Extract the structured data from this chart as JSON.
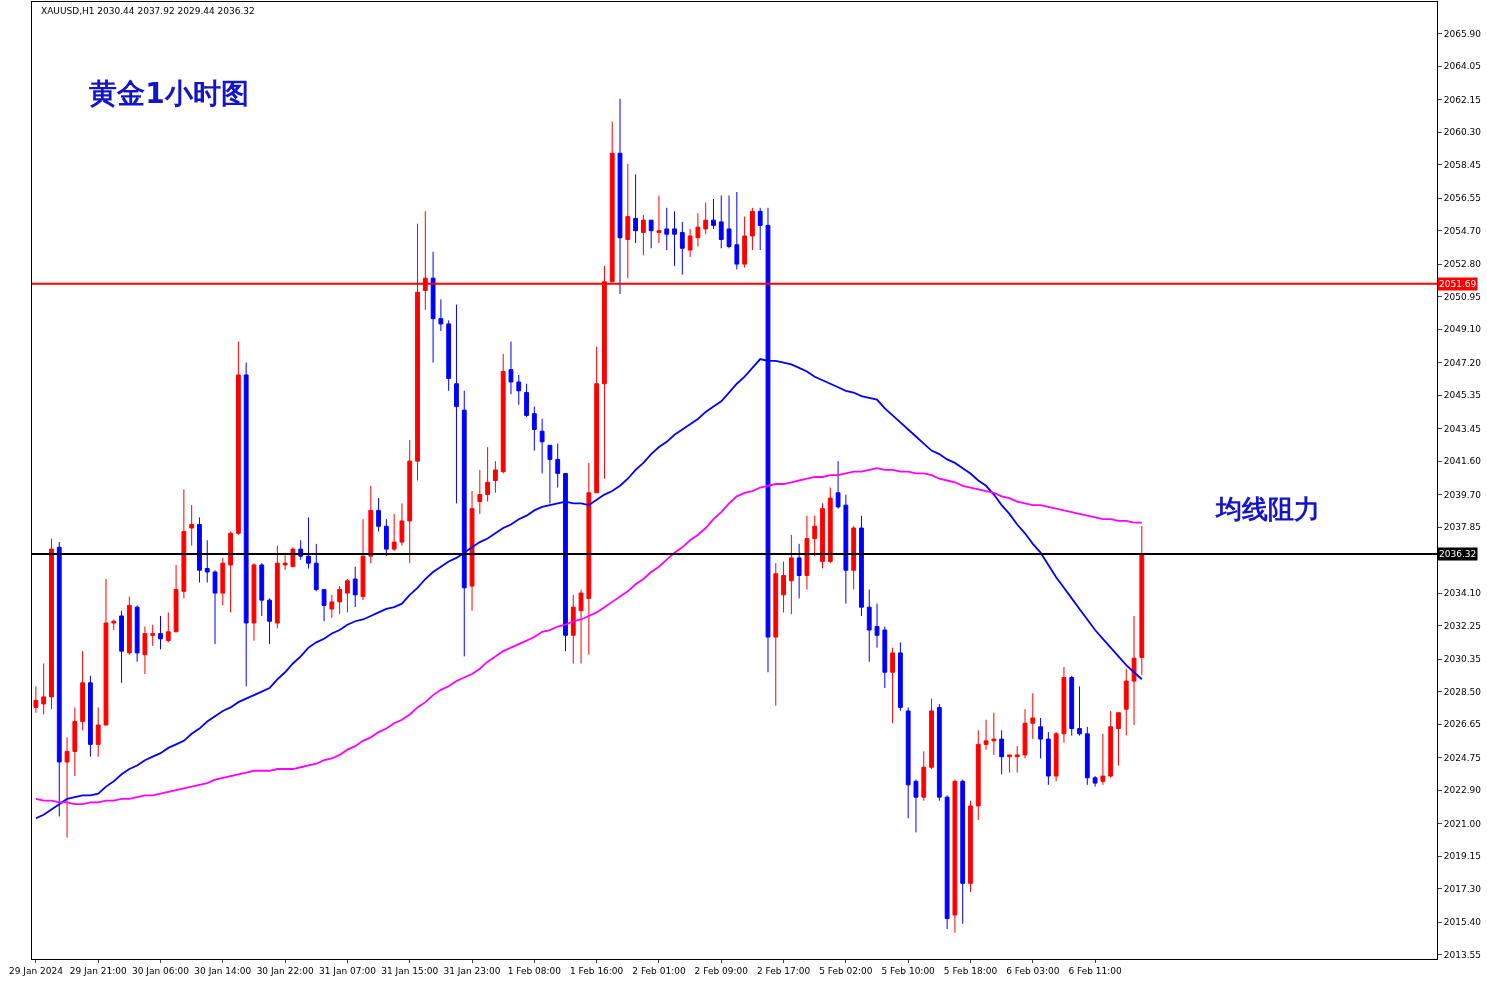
{
  "chart_data": {
    "type": "candlestick",
    "title": "黄金1小时图",
    "annotations": [
      "XAUUSD,H1 2030.44 2037.92 2029.44 2036.32",
      "均线阻力"
    ],
    "categories": [
      "29 Jan 2024",
      null,
      null,
      null,
      null,
      null,
      null,
      null,
      "29 Jan 21:00",
      null,
      null,
      null,
      null,
      null,
      null,
      null,
      "30 Jan 06:00",
      null,
      null,
      null,
      null,
      null,
      null,
      null,
      "30 Jan 14:00",
      null,
      null,
      null,
      null,
      null,
      null,
      null,
      "30 Jan 22:00",
      null,
      null,
      null,
      null,
      null,
      null,
      null,
      "31 Jan 07:00",
      null,
      null,
      null,
      null,
      null,
      null,
      null,
      "31 Jan 15:00",
      null,
      null,
      null,
      null,
      null,
      null,
      null,
      "31 Jan 23:00",
      null,
      null,
      null,
      null,
      null,
      null,
      null,
      "1 Feb 08:00",
      null,
      null,
      null,
      null,
      null,
      null,
      null,
      "1 Feb 16:00",
      null,
      null,
      null,
      null,
      null,
      null,
      null,
      "2 Feb 01:00",
      null,
      null,
      null,
      null,
      null,
      null,
      null,
      "2 Feb 09:00",
      null,
      null,
      null,
      null,
      null,
      null,
      null,
      "2 Feb 17:00",
      null,
      null,
      null,
      null,
      null,
      null,
      null,
      "5 Feb 02:00",
      null,
      null,
      null,
      null,
      null,
      null,
      null,
      "5 Feb 10:00",
      null,
      null,
      null,
      null,
      null,
      null,
      null,
      "5 Feb 18:00",
      null,
      null,
      null,
      null,
      null,
      null,
      null,
      "6 Feb 03:00",
      null,
      null,
      null,
      null,
      null,
      null,
      null,
      "6 Feb 11:00",
      null,
      null,
      null,
      null,
      null,
      null
    ],
    "ohlc": [
      [
        2027.6,
        2028.8,
        2027.3,
        2028.0
      ],
      [
        2027.8,
        2030.1,
        2027.2,
        2028.2
      ],
      [
        2028.2,
        2037.2,
        2027.5,
        2036.6
      ],
      [
        2036.7,
        2037.0,
        2021.4,
        2024.5
      ],
      [
        2024.5,
        2025.9,
        2020.2,
        2025.1
      ],
      [
        2025.1,
        2027.6,
        2023.7,
        2026.8
      ],
      [
        2026.8,
        2030.8,
        2026.3,
        2029.0
      ],
      [
        2029.0,
        2029.4,
        2024.8,
        2025.5
      ],
      [
        2025.5,
        2027.6,
        2024.8,
        2026.6
      ],
      [
        2026.6,
        2034.9,
        2026.6,
        2032.4
      ],
      [
        2032.4,
        2032.6,
        2032.0,
        2032.5
      ],
      [
        2032.8,
        2033.1,
        2029.0,
        2030.8
      ],
      [
        2030.7,
        2033.9,
        2030.6,
        2033.4
      ],
      [
        2033.3,
        2033.4,
        2030.2,
        2030.7
      ],
      [
        2030.6,
        2032.2,
        2029.5,
        2031.8
      ],
      [
        2031.7,
        2032.3,
        2031.1,
        2031.8
      ],
      [
        2031.8,
        2032.8,
        2030.9,
        2031.5
      ],
      [
        2031.4,
        2033.0,
        2031.3,
        2031.9
      ],
      [
        2031.9,
        2035.7,
        2031.9,
        2034.3
      ],
      [
        2034.2,
        2040.0,
        2033.8,
        2037.6
      ],
      [
        2037.8,
        2039.1,
        2036.8,
        2038.0
      ],
      [
        2038.0,
        2038.4,
        2034.7,
        2035.4
      ],
      [
        2035.5,
        2037.1,
        2034.7,
        2035.3
      ],
      [
        2035.3,
        2035.4,
        2031.2,
        2034.1
      ],
      [
        2034.1,
        2036.1,
        2033.4,
        2035.8
      ],
      [
        2035.7,
        2037.6,
        2033.0,
        2037.5
      ],
      [
        2037.5,
        2048.4,
        2037.4,
        2046.5
      ],
      [
        2046.5,
        2047.2,
        2028.8,
        2032.4
      ],
      [
        2032.4,
        2035.8,
        2031.4,
        2035.7
      ],
      [
        2035.7,
        2035.8,
        2032.8,
        2033.7
      ],
      [
        2033.7,
        2033.8,
        2031.2,
        2032.5
      ],
      [
        2032.4,
        2036.8,
        2032.1,
        2035.8
      ],
      [
        2035.7,
        2036.4,
        2035.4,
        2035.8
      ],
      [
        2035.6,
        2036.7,
        2035.6,
        2036.6
      ],
      [
        2036.6,
        2037.1,
        2036.0,
        2036.2
      ],
      [
        2036.2,
        2038.4,
        2035.5,
        2035.8
      ],
      [
        2035.8,
        2036.9,
        2034.2,
        2034.3
      ],
      [
        2034.3,
        2034.3,
        2032.5,
        2033.4
      ],
      [
        2033.2,
        2034.0,
        2032.7,
        2033.6
      ],
      [
        2033.6,
        2034.5,
        2032.9,
        2034.3
      ],
      [
        2034.1,
        2034.9,
        2033.0,
        2034.8
      ],
      [
        2034.9,
        2035.6,
        2033.3,
        2034.0
      ],
      [
        2033.9,
        2038.3,
        2033.7,
        2036.2
      ],
      [
        2036.2,
        2040.2,
        2035.8,
        2038.8
      ],
      [
        2038.8,
        2039.5,
        2037.6,
        2037.9
      ],
      [
        2037.9,
        2038.3,
        2036.2,
        2036.6
      ],
      [
        2036.6,
        2038.6,
        2036.5,
        2037.0
      ],
      [
        2037.0,
        2039.2,
        2036.8,
        2038.2
      ],
      [
        2038.2,
        2042.8,
        2035.8,
        2041.6
      ],
      [
        2041.6,
        2055.1,
        2040.5,
        2051.2
      ],
      [
        2051.3,
        2055.8,
        2050.2,
        2052.0
      ],
      [
        2052.0,
        2053.5,
        2047.2,
        2049.7
      ],
      [
        2049.7,
        2050.8,
        2049.0,
        2049.4
      ],
      [
        2049.4,
        2049.6,
        2045.6,
        2046.3
      ],
      [
        2046.0,
        2050.5,
        2039.2,
        2044.7
      ],
      [
        2044.5,
        2045.6,
        2030.5,
        2034.4
      ],
      [
        2034.5,
        2039.9,
        2033.1,
        2038.9
      ],
      [
        2039.3,
        2041.1,
        2038.6,
        2039.7
      ],
      [
        2039.7,
        2042.4,
        2039.3,
        2040.4
      ],
      [
        2040.5,
        2041.6,
        2039.8,
        2041.1
      ],
      [
        2041.0,
        2047.7,
        2040.9,
        2046.7
      ],
      [
        2046.8,
        2048.4,
        2045.4,
        2046.1
      ],
      [
        2046.1,
        2046.5,
        2044.8,
        2045.6
      ],
      [
        2045.5,
        2046.0,
        2044.1,
        2044.2
      ],
      [
        2044.3,
        2044.7,
        2042.2,
        2043.4
      ],
      [
        2043.3,
        2044.0,
        2040.9,
        2042.7
      ],
      [
        2042.5,
        2042.5,
        2039.2,
        2041.7
      ],
      [
        2041.7,
        2042.6,
        2040.1,
        2040.9
      ],
      [
        2040.9,
        2040.9,
        2030.8,
        2031.7
      ],
      [
        2031.7,
        2034.0,
        2030.1,
        2033.3
      ],
      [
        2033.1,
        2034.3,
        2030.1,
        2034.1
      ],
      [
        2033.8,
        2041.5,
        2030.6,
        2039.8
      ],
      [
        2039.8,
        2048.1,
        2039.8,
        2046.0
      ],
      [
        2046.0,
        2052.7,
        2040.6,
        2051.8
      ],
      [
        2051.8,
        2060.9,
        2051.8,
        2059.1
      ],
      [
        2059.1,
        2062.2,
        2051.1,
        2054.3
      ],
      [
        2054.2,
        2058.5,
        2052.0,
        2055.5
      ],
      [
        2055.4,
        2057.9,
        2054.0,
        2054.7
      ],
      [
        2054.6,
        2055.6,
        2053.3,
        2055.3
      ],
      [
        2055.3,
        2055.3,
        2053.7,
        2054.7
      ],
      [
        2054.6,
        2056.7,
        2054.0,
        2054.7
      ],
      [
        2054.8,
        2056.0,
        2053.6,
        2054.5
      ],
      [
        2054.8,
        2055.8,
        2052.7,
        2054.5
      ],
      [
        2054.6,
        2055.2,
        2052.2,
        2053.7
      ],
      [
        2053.6,
        2054.8,
        2053.2,
        2054.4
      ],
      [
        2054.3,
        2055.7,
        2053.8,
        2054.9
      ],
      [
        2054.8,
        2056.3,
        2054.5,
        2055.3
      ],
      [
        2055.3,
        2056.5,
        2054.8,
        2055.0
      ],
      [
        2055.2,
        2056.7,
        2053.7,
        2054.2
      ],
      [
        2054.8,
        2056.7,
        2053.7,
        2053.8
      ],
      [
        2053.9,
        2056.9,
        2052.5,
        2052.8
      ],
      [
        2052.8,
        2055.5,
        2052.6,
        2054.4
      ],
      [
        2054.4,
        2056.0,
        2053.6,
        2055.8
      ],
      [
        2055.8,
        2056.0,
        2053.6,
        2055.0
      ],
      [
        2055.0,
        2056.0,
        2029.6,
        2031.6
      ],
      [
        2031.6,
        2035.8,
        2027.7,
        2035.2
      ],
      [
        2034.0,
        2035.9,
        2033.0,
        2035.1
      ],
      [
        2034.8,
        2037.4,
        2032.9,
        2036.1
      ],
      [
        2036.1,
        2036.9,
        2033.8,
        2035.1
      ],
      [
        2035.1,
        2038.5,
        2034.3,
        2037.2
      ],
      [
        2037.2,
        2038.5,
        2036.2,
        2037.9
      ],
      [
        2035.9,
        2039.2,
        2035.5,
        2038.9
      ],
      [
        2035.9,
        2040.1,
        2035.8,
        2039.5
      ],
      [
        2039.8,
        2041.6,
        2038.9,
        2039.0
      ],
      [
        2039.1,
        2039.7,
        2033.5,
        2035.4
      ],
      [
        2035.4,
        2037.9,
        2034.3,
        2037.8
      ],
      [
        2037.8,
        2038.5,
        2032.8,
        2033.3
      ],
      [
        2033.3,
        2034.3,
        2030.2,
        2032.0
      ],
      [
        2032.2,
        2033.5,
        2031.0,
        2031.7
      ],
      [
        2032.0,
        2032.2,
        2028.7,
        2029.6
      ],
      [
        2029.6,
        2031.0,
        2026.7,
        2030.7
      ],
      [
        2030.7,
        2031.3,
        2027.4,
        2027.6
      ],
      [
        2027.4,
        2027.6,
        2021.3,
        2023.2
      ],
      [
        2023.4,
        2023.5,
        2020.5,
        2022.5
      ],
      [
        2022.5,
        2025.1,
        2022.3,
        2024.2
      ],
      [
        2024.2,
        2028.1,
        2024.1,
        2027.4
      ],
      [
        2027.6,
        2027.8,
        2022.3,
        2022.5
      ],
      [
        2022.5,
        2022.6,
        2015.0,
        2015.6
      ],
      [
        2015.8,
        2023.5,
        2014.8,
        2023.4
      ],
      [
        2023.4,
        2023.5,
        2015.3,
        2017.6
      ],
      [
        2017.6,
        2022.3,
        2017.1,
        2022.0
      ],
      [
        2022.0,
        2026.3,
        2021.2,
        2025.5
      ],
      [
        2025.5,
        2026.9,
        2025.2,
        2025.7
      ],
      [
        2025.7,
        2027.3,
        2024.9,
        2025.8
      ],
      [
        2025.8,
        2026.3,
        2023.8,
        2024.8
      ],
      [
        2024.8,
        2024.9,
        2023.9,
        2024.9
      ],
      [
        2024.8,
        2025.4,
        2023.9,
        2024.9
      ],
      [
        2024.9,
        2027.5,
        2024.7,
        2026.7
      ],
      [
        2026.7,
        2028.4,
        2025.8,
        2027.0
      ],
      [
        2026.5,
        2027.0,
        2024.7,
        2025.8
      ],
      [
        2025.8,
        2026.2,
        2023.2,
        2023.7
      ],
      [
        2023.7,
        2026.2,
        2023.4,
        2026.1
      ],
      [
        2026.1,
        2029.9,
        2025.6,
        2029.3
      ],
      [
        2029.3,
        2029.4,
        2026.0,
        2026.4
      ],
      [
        2026.4,
        2028.8,
        2026.0,
        2026.1
      ],
      [
        2026.1,
        2026.5,
        2023.2,
        2023.6
      ],
      [
        2023.6,
        2023.7,
        2023.1,
        2023.3
      ],
      [
        2023.4,
        2026.1,
        2023.2,
        2023.7
      ],
      [
        2023.7,
        2027.4,
        2023.6,
        2026.5
      ],
      [
        2026.4,
        2027.3,
        2024.3,
        2027.3
      ],
      [
        2027.5,
        2029.8,
        2026.0,
        2029.1
      ],
      [
        2029.1,
        2032.8,
        2026.6,
        2030.4
      ],
      [
        2030.44,
        2037.92,
        2029.44,
        2036.32
      ]
    ],
    "colors": [
      "#ff0000",
      "#ff0000",
      "#ff0000",
      "#0000ff",
      "#ff0000",
      "#ff0000",
      "#ff0000",
      "#0000ff",
      "#ff0000",
      "#ff0000",
      "#ff0000",
      "#0000ff",
      "#ff0000",
      "#0000ff",
      "#ff0000",
      "#ff0000",
      "#0000ff",
      "#ff0000",
      "#ff0000",
      "#ff0000",
      "#ff0000",
      "#0000ff",
      "#0000ff",
      "#0000ff",
      "#ff0000",
      "#ff0000",
      "#ff0000",
      "#0000ff",
      "#ff0000",
      "#0000ff",
      "#0000ff",
      "#ff0000",
      "#ff0000",
      "#ff0000",
      "#0000ff",
      "#0000ff",
      "#0000ff",
      "#0000ff",
      "#ff0000",
      "#ff0000",
      "#ff0000",
      "#0000ff",
      "#ff0000",
      "#ff0000",
      "#0000ff",
      "#0000ff",
      "#ff0000",
      "#ff0000",
      "#ff0000",
      "#ff0000",
      "#ff0000",
      "#0000ff",
      "#0000ff",
      "#0000ff",
      "#0000ff",
      "#0000ff",
      "#ff0000",
      "#ff0000",
      "#ff0000",
      "#ff0000",
      "#ff0000",
      "#0000ff",
      "#0000ff",
      "#0000ff",
      "#0000ff",
      "#0000ff",
      "#0000ff",
      "#0000ff",
      "#0000ff",
      "#ff0000",
      "#ff0000",
      "#ff0000",
      "#ff0000",
      "#ff0000",
      "#ff0000",
      "#0000ff",
      "#ff0000",
      "#0000ff",
      "#ff0000",
      "#0000ff",
      "#ff0000",
      "#0000ff",
      "#0000ff",
      "#0000ff",
      "#ff0000",
      "#ff0000",
      "#ff0000",
      "#0000ff",
      "#0000ff",
      "#0000ff",
      "#0000ff",
      "#ff0000",
      "#ff0000",
      "#0000ff",
      "#0000ff",
      "#ff0000",
      "#ff0000",
      "#ff0000",
      "#0000ff",
      "#ff0000",
      "#ff0000",
      "#ff0000",
      "#ff0000",
      "#0000ff",
      "#0000ff",
      "#ff0000",
      "#0000ff",
      "#0000ff",
      "#0000ff",
      "#0000ff",
      "#ff0000",
      "#0000ff",
      "#0000ff",
      "#0000ff",
      "#ff0000",
      "#ff0000",
      "#0000ff",
      "#0000ff",
      "#ff0000",
      "#0000ff",
      "#ff0000",
      "#ff0000",
      "#ff0000",
      "#ff0000",
      "#0000ff",
      "#ff0000",
      "#ff0000",
      "#ff0000",
      "#ff0000",
      "#0000ff",
      "#0000ff",
      "#ff0000",
      "#ff0000",
      "#0000ff",
      "#0000ff",
      "#0000ff",
      "#0000ff",
      "#ff0000",
      "#ff0000",
      "#ff0000",
      "#ff0000",
      "#ff0000",
      "#ff0000"
    ],
    "series": [
      {
        "type": "line",
        "color": "#0000ff",
        "values": [
          2021.3,
          2021.5,
          2021.8,
          2022.1,
          2022.4,
          2022.5,
          2022.6,
          2022.6,
          2022.7,
          2023.1,
          2023.4,
          2023.8,
          2024.1,
          2024.3,
          2024.6,
          2024.8,
          2025.0,
          2025.3,
          2025.5,
          2025.7,
          2026.1,
          2026.4,
          2026.8,
          2027.1,
          2027.4,
          2027.6,
          2027.9,
          2028.1,
          2028.3,
          2028.5,
          2028.7,
          2029.2,
          2029.6,
          2030.1,
          2030.5,
          2031.0,
          2031.3,
          2031.5,
          2031.8,
          2032.0,
          2032.3,
          2032.5,
          2032.6,
          2032.8,
          2033.0,
          2033.2,
          2033.3,
          2033.5,
          2034.0,
          2034.4,
          2034.9,
          2035.3,
          2035.6,
          2035.9,
          2036.1,
          2036.4,
          2036.7,
          2037.0,
          2037.2,
          2037.5,
          2037.8,
          2038.0,
          2038.3,
          2038.5,
          2038.8,
          2039.0,
          2039.1,
          2039.2,
          2039.3,
          2039.2,
          2039.2,
          2039.1,
          2039.4,
          2039.7,
          2039.9,
          2040.2,
          2040.6,
          2041.1,
          2041.5,
          2042.0,
          2042.4,
          2042.7,
          2043.1,
          2043.4,
          2043.7,
          2044.0,
          2044.4,
          2044.7,
          2045.0,
          2045.5,
          2046.0,
          2046.4,
          2046.9,
          2047.4,
          2047.3,
          2047.3,
          2047.2,
          2047.1,
          2046.9,
          2046.7,
          2046.4,
          2046.2,
          2046.0,
          2045.8,
          2045.6,
          2045.5,
          2045.3,
          2045.2,
          2045.1,
          2044.6,
          2044.2,
          2043.8,
          2043.4,
          2043.0,
          2042.6,
          2042.2,
          2042.0,
          2041.7,
          2041.5,
          2041.2,
          2040.9,
          2040.5,
          2040.2,
          2039.7,
          2039.1,
          2038.6,
          2038.0,
          2037.5,
          2036.9,
          2036.4,
          2035.7,
          2035.0,
          2034.4,
          2033.8,
          2033.2,
          2032.6,
          2032.0,
          2031.5,
          2031.0,
          2030.5,
          2030.0,
          2029.6,
          2029.2
        ]
      },
      {
        "type": "line",
        "color": "#ff00ff",
        "values": [
          2022.4,
          2022.3,
          2022.3,
          2022.2,
          2022.2,
          2022.1,
          2022.1,
          2022.2,
          2022.2,
          2022.3,
          2022.3,
          2022.4,
          2022.4,
          2022.5,
          2022.6,
          2022.6,
          2022.7,
          2022.8,
          2022.9,
          2023.0,
          2023.1,
          2023.2,
          2023.3,
          2023.5,
          2023.6,
          2023.7,
          2023.8,
          2023.9,
          2024.0,
          2024.0,
          2024.0,
          2024.1,
          2024.1,
          2024.1,
          2024.2,
          2024.3,
          2024.4,
          2024.6,
          2024.7,
          2024.9,
          2025.2,
          2025.4,
          2025.7,
          2025.9,
          2026.2,
          2026.4,
          2026.7,
          2026.9,
          2027.2,
          2027.6,
          2027.9,
          2028.3,
          2028.6,
          2028.8,
          2029.1,
          2029.3,
          2029.5,
          2029.8,
          2030.2,
          2030.5,
          2030.8,
          2031.0,
          2031.2,
          2031.4,
          2031.6,
          2031.9,
          2032.0,
          2032.2,
          2032.3,
          2032.5,
          2032.6,
          2032.8,
          2033.0,
          2033.3,
          2033.6,
          2033.9,
          2034.2,
          2034.6,
          2034.9,
          2035.3,
          2035.6,
          2036.0,
          2036.4,
          2036.7,
          2037.1,
          2037.4,
          2037.8,
          2038.3,
          2038.7,
          2039.2,
          2039.6,
          2039.8,
          2039.9,
          2040.1,
          2040.2,
          2040.3,
          2040.3,
          2040.4,
          2040.5,
          2040.6,
          2040.7,
          2040.7,
          2040.8,
          2040.8,
          2040.9,
          2041.0,
          2041.0,
          2041.1,
          2041.2,
          2041.1,
          2041.1,
          2041.0,
          2041.0,
          2040.9,
          2040.9,
          2040.8,
          2040.6,
          2040.5,
          2040.4,
          2040.2,
          2040.1,
          2040.0,
          2039.9,
          2039.8,
          2039.6,
          2039.5,
          2039.3,
          2039.2,
          2039.1,
          2039.1,
          2039.0,
          2038.9,
          2038.8,
          2038.7,
          2038.6,
          2038.5,
          2038.4,
          2038.3,
          2038.3,
          2038.2,
          2038.2,
          2038.1,
          2038.1
        ]
      }
    ],
    "ref_lines": [
      {
        "axis": "y",
        "value": 2051.69,
        "label": "2051.69",
        "color": "#ff0000"
      },
      {
        "axis": "y",
        "value": 2036.32,
        "label": "2036.32",
        "color": "#000000"
      }
    ],
    "ylim": [
      2013.3,
      2067.7
    ],
    "yticks": [
      {
        "value": 2013.55,
        "label": "2013.55"
      },
      {
        "value": 2015.4,
        "label": "2015.40"
      },
      {
        "value": 2017.3,
        "label": "2017.30"
      },
      {
        "value": 2019.15,
        "label": "2019.15"
      },
      {
        "value": 2021.0,
        "label": "2021.00"
      },
      {
        "value": 2022.9,
        "label": "2022.90"
      },
      {
        "value": 2024.75,
        "label": "2024.75"
      },
      {
        "value": 2026.65,
        "label": "2026.65"
      },
      {
        "value": 2028.5,
        "label": "2028.50"
      },
      {
        "value": 2030.35,
        "label": "2030.35"
      },
      {
        "value": 2032.25,
        "label": "2032.25"
      },
      {
        "value": 2034.1,
        "label": "2034.10"
      },
      {
        "value": 2037.85,
        "label": "2037.85"
      },
      {
        "value": 2039.7,
        "label": "2039.70"
      },
      {
        "value": 2041.6,
        "label": "2041.60"
      },
      {
        "value": 2043.45,
        "label": "2043.45"
      },
      {
        "value": 2045.35,
        "label": "2045.35"
      },
      {
        "value": 2047.2,
        "label": "2047.20"
      },
      {
        "value": 2049.1,
        "label": "2049.10"
      },
      {
        "value": 2050.95,
        "label": "2050.95"
      },
      {
        "value": 2052.8,
        "label": "2052.80"
      },
      {
        "value": 2054.7,
        "label": "2054.70"
      },
      {
        "value": 2056.55,
        "label": "2056.55"
      },
      {
        "value": 2058.45,
        "label": "2058.45"
      },
      {
        "value": 2060.3,
        "label": "2060.30"
      },
      {
        "value": 2062.15,
        "label": "2062.15"
      },
      {
        "value": 2064.05,
        "label": "2064.05"
      },
      {
        "value": 2065.9,
        "label": "2065.90"
      }
    ]
  }
}
